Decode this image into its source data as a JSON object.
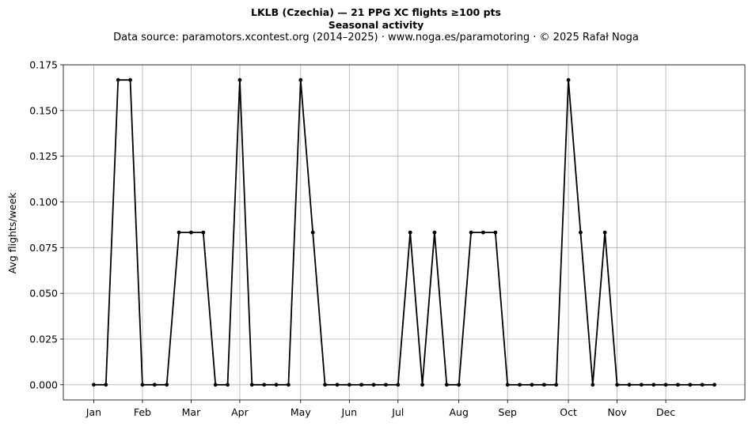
{
  "chart_data": {
    "type": "line",
    "title": "LKLB (Czechia)  —  21 PPG XC flights ≥100 pts",
    "subtitle": "Seasonal activity",
    "source": "Data source: paramotors.xcontest.org (2014–2025)  ·  www.noga.es/paramotoring  ·  © 2025 Rafał Noga",
    "xlabel": "",
    "ylabel": "Avg flights/week",
    "ylim": [
      -0.0083,
      0.175
    ],
    "xlim": [
      -2.5,
      53.5
    ],
    "yticks": [
      0.0,
      0.025,
      0.05,
      0.075,
      0.1,
      0.125,
      0.15,
      0.175
    ],
    "ytick_labels": [
      "0.000",
      "0.025",
      "0.050",
      "0.075",
      "0.100",
      "0.125",
      "0.150",
      "0.175"
    ],
    "xticks": [
      0,
      4,
      8,
      12,
      17,
      21,
      25,
      30,
      34,
      39,
      43,
      47
    ],
    "xtick_labels": [
      "Jan",
      "Feb",
      "Mar",
      "Apr",
      "May",
      "Jun",
      "Jul",
      "Aug",
      "Sep",
      "Oct",
      "Nov",
      "Dec"
    ],
    "grid": true,
    "line_color": "#000000",
    "x": [
      0,
      1,
      2,
      3,
      4,
      5,
      6,
      7,
      8,
      9,
      10,
      11,
      12,
      13,
      14,
      15,
      16,
      17,
      18,
      19,
      20,
      21,
      22,
      23,
      24,
      25,
      26,
      27,
      28,
      29,
      30,
      31,
      32,
      33,
      34,
      35,
      36,
      37,
      38,
      39,
      40,
      41,
      42,
      43,
      44,
      45,
      46,
      47,
      48,
      49,
      50,
      51
    ],
    "values": [
      0.0,
      0.0,
      0.1667,
      0.1667,
      0.0,
      0.0,
      0.0,
      0.0833,
      0.0833,
      0.0833,
      0.0,
      0.0,
      0.1667,
      0.0,
      0.0,
      0.0,
      0.0,
      0.1667,
      0.0833,
      0.0,
      0.0,
      0.0,
      0.0,
      0.0,
      0.0,
      0.0,
      0.0833,
      0.0,
      0.0833,
      0.0,
      0.0,
      0.0833,
      0.0833,
      0.0833,
      0.0,
      0.0,
      0.0,
      0.0,
      0.0,
      0.1667,
      0.0833,
      0.0,
      0.0833,
      0.0,
      0.0,
      0.0,
      0.0,
      0.0,
      0.0,
      0.0,
      0.0,
      0.0
    ]
  }
}
